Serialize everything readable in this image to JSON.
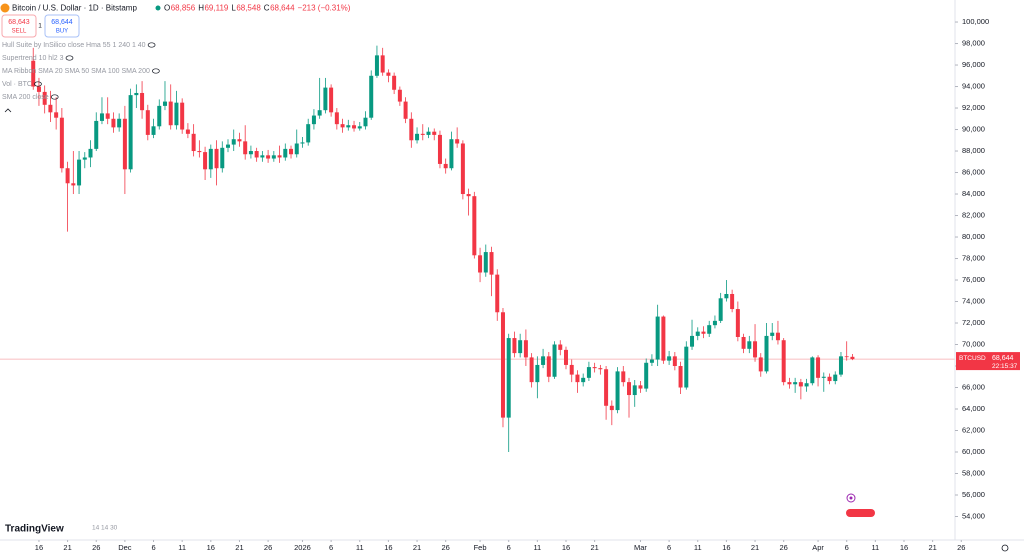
{
  "header": {
    "title": "Bitcoin / U.S. Dollar · 1D · Bitstamp",
    "ohlc": [
      {
        "prefix": "O",
        "text": "68,856"
      },
      {
        "prefix": "H",
        "text": "69,119"
      },
      {
        "prefix": "L",
        "text": "68,548"
      },
      {
        "prefix": "C",
        "text": "68,644"
      }
    ],
    "change": "−213 (−0.31%)"
  },
  "trade": {
    "sell": {
      "price": "68,643",
      "label": "SELL"
    },
    "spread": "1",
    "buy": {
      "price": "68,644",
      "label": "BUY"
    }
  },
  "indicators": [
    "Hull Suite by InSilico close Hma 55 1 240 1 40",
    "Supertrend 10 hl2 3",
    "MA Ribbon SMA 20 SMA 50 SMA 100 SMA 200",
    "Vol · BTC",
    "SMA 200 close"
  ],
  "footer": {
    "logo": "TradingView",
    "note": "14 14 30"
  },
  "chart_data": {
    "type": "candlestick",
    "up_color": "#089981",
    "down_color": "#f23645",
    "xlim": [
      -6.8,
      162
    ],
    "ylim": [
      52000,
      102050
    ],
    "grid": false,
    "xticks": [
      {
        "value": 0,
        "label": "16"
      },
      {
        "value": 5,
        "label": "21"
      },
      {
        "value": 10,
        "label": "26"
      },
      {
        "value": 15,
        "label": "Dec"
      },
      {
        "value": 20,
        "label": "6"
      },
      {
        "value": 25,
        "label": "11"
      },
      {
        "value": 30,
        "label": "16"
      },
      {
        "value": 35,
        "label": "21"
      },
      {
        "value": 40,
        "label": "26"
      },
      {
        "value": 46,
        "label": "2026"
      },
      {
        "value": 51,
        "label": "6"
      },
      {
        "value": 56,
        "label": "11"
      },
      {
        "value": 61,
        "label": "16"
      },
      {
        "value": 66,
        "label": "21"
      },
      {
        "value": 71,
        "label": "26"
      },
      {
        "value": 77,
        "label": "Feb"
      },
      {
        "value": 82,
        "label": "6"
      },
      {
        "value": 87,
        "label": "11"
      },
      {
        "value": 92,
        "label": "16"
      },
      {
        "value": 97,
        "label": "21"
      },
      {
        "value": 105,
        "label": "Mar"
      },
      {
        "value": 110,
        "label": "6"
      },
      {
        "value": 115,
        "label": "11"
      },
      {
        "value": 120,
        "label": "16"
      },
      {
        "value": 125,
        "label": "21"
      },
      {
        "value": 130,
        "label": "26"
      },
      {
        "value": 136,
        "label": "Apr"
      },
      {
        "value": 141,
        "label": "6"
      },
      {
        "value": 146,
        "label": "11"
      },
      {
        "value": 151,
        "label": "16"
      },
      {
        "value": 156,
        "label": "21"
      },
      {
        "value": 161,
        "label": "26"
      }
    ],
    "yticks": [
      {
        "value": 54000,
        "label": "54,000"
      },
      {
        "value": 56000,
        "label": "56,000"
      },
      {
        "value": 58000,
        "label": "58,000"
      },
      {
        "value": 60000,
        "label": "60,000"
      },
      {
        "value": 62000,
        "label": "62,000"
      },
      {
        "value": 64000,
        "label": "64,000"
      },
      {
        "value": 66000,
        "label": "66,000"
      },
      {
        "value": 68000,
        "label": "68,000"
      },
      {
        "value": 70000,
        "label": "70,000"
      },
      {
        "value": 72000,
        "label": "72,000"
      },
      {
        "value": 74000,
        "label": "74,000"
      },
      {
        "value": 76000,
        "label": "76,000"
      },
      {
        "value": 78000,
        "label": "78,000"
      },
      {
        "value": 80000,
        "label": "80,000"
      },
      {
        "value": 82000,
        "label": "82,000"
      },
      {
        "value": 84000,
        "label": "84,000"
      },
      {
        "value": 86000,
        "label": "86,000"
      },
      {
        "value": 88000,
        "label": "88,000"
      },
      {
        "value": 90000,
        "label": "90,000"
      },
      {
        "value": 92000,
        "label": "92,000"
      },
      {
        "value": 94000,
        "label": "94,000"
      },
      {
        "value": 96000,
        "label": "96,000"
      },
      {
        "value": 98000,
        "label": "98,000"
      },
      {
        "value": 100000,
        "label": "100,000"
      }
    ],
    "last_price": {
      "symbol": "BTCUSD",
      "value": 68644,
      "label": "68,644",
      "countdown": "22:15:37"
    },
    "x": [
      -1,
      0,
      1,
      2,
      3,
      4,
      5,
      6,
      7,
      8,
      9,
      10,
      11,
      12,
      13,
      14,
      15,
      16,
      17,
      18,
      19,
      20,
      21,
      22,
      23,
      24,
      25,
      26,
      27,
      28,
      29,
      30,
      31,
      32,
      33,
      34,
      35,
      36,
      37,
      38,
      39,
      40,
      41,
      42,
      43,
      44,
      45,
      46,
      47,
      48,
      49,
      50,
      51,
      52,
      53,
      54,
      55,
      56,
      57,
      58,
      59,
      60,
      61,
      62,
      63,
      64,
      65,
      66,
      67,
      68,
      69,
      70,
      71,
      72,
      73,
      74,
      75,
      76,
      77,
      78,
      79,
      80,
      81,
      82,
      83,
      84,
      85,
      86,
      87,
      88,
      89,
      90,
      91,
      92,
      93,
      94,
      95,
      96,
      97,
      98,
      99,
      100,
      101,
      102,
      103,
      104,
      105,
      106,
      107,
      108,
      109,
      110,
      111,
      112,
      113,
      114,
      115,
      116,
      117,
      118,
      119,
      120,
      121,
      122,
      123,
      124,
      125,
      126,
      127,
      128,
      129,
      130,
      131,
      132,
      133,
      134,
      135,
      136,
      137,
      138,
      139,
      140,
      141,
      142
    ],
    "open": [
      96400,
      94000,
      93500,
      92300,
      91600,
      91100,
      86400,
      85000,
      84800,
      87200,
      87400,
      88200,
      90800,
      91500,
      91000,
      90200,
      91000,
      86300,
      93200,
      93400,
      91800,
      89500,
      90300,
      92200,
      92600,
      90400,
      92500,
      90000,
      89600,
      88000,
      87900,
      86300,
      88200,
      86400,
      88300,
      88600,
      89100,
      88900,
      87700,
      88000,
      87400,
      87600,
      87300,
      87600,
      87400,
      88200,
      87700,
      88700,
      88800,
      90500,
      91300,
      91800,
      93900,
      91600,
      90500,
      90200,
      90400,
      90100,
      90300,
      91100,
      95000,
      96900,
      95300,
      95000,
      93700,
      92600,
      91000,
      89000,
      89600,
      89500,
      89800,
      89500,
      86800,
      86400,
      89100,
      88700,
      84000,
      83800,
      78300,
      76700,
      78600,
      76500,
      73000,
      63200,
      70600,
      69200,
      70400,
      68800,
      66500,
      68100,
      68900,
      67000,
      70000,
      69500,
      68100,
      67200,
      66500,
      66900,
      67900,
      67800,
      67700,
      64300,
      63900,
      67500,
      66500,
      65300,
      66200,
      65900,
      68300,
      68600,
      72600,
      68500,
      68900,
      68000,
      66000,
      69800,
      70800,
      71200,
      71000,
      71800,
      72200,
      74300,
      74700,
      73300,
      70700,
      69600,
      70300,
      68800,
      67500,
      70800,
      71100,
      70400,
      66500,
      66300,
      66500,
      66100,
      66400,
      68800,
      66900,
      67000,
      66600,
      67200,
      68900,
      68856
    ],
    "high": [
      97600,
      94800,
      94100,
      93600,
      93000,
      92000,
      87000,
      88000,
      88000,
      87900,
      89000,
      91600,
      93000,
      93000,
      91600,
      91500,
      92200,
      93800,
      94200,
      94500,
      92300,
      91000,
      92800,
      94500,
      94200,
      93600,
      92900,
      90600,
      90500,
      89000,
      88400,
      88600,
      89000,
      88900,
      89100,
      90000,
      89700,
      90400,
      88500,
      88300,
      88000,
      88100,
      88000,
      88500,
      88700,
      88500,
      90000,
      89300,
      91000,
      91900,
      94800,
      94800,
      94200,
      92000,
      91000,
      90900,
      90800,
      90700,
      91700,
      95500,
      97800,
      97600,
      95600,
      95300,
      94000,
      93000,
      91600,
      90200,
      90500,
      90200,
      90100,
      89900,
      87300,
      89800,
      90200,
      89000,
      84500,
      84200,
      79000,
      79300,
      79100,
      77000,
      73400,
      71000,
      71200,
      71000,
      71400,
      69200,
      68900,
      69600,
      69300,
      70300,
      70400,
      69800,
      68600,
      67600,
      67300,
      68400,
      68300,
      68100,
      68000,
      64800,
      67900,
      68000,
      66900,
      66700,
      66600,
      68700,
      69100,
      73700,
      72700,
      69400,
      69300,
      68400,
      70300,
      72300,
      71600,
      71700,
      72200,
      72700,
      74800,
      76000,
      75100,
      74000,
      71000,
      70800,
      71900,
      69200,
      72000,
      72000,
      72200,
      70600,
      66900,
      66900,
      66800,
      66800,
      68900,
      69000,
      67400,
      67300,
      67500,
      69300,
      70300,
      69119
    ],
    "low": [
      93700,
      92200,
      91500,
      90700,
      90000,
      86000,
      80500,
      84000,
      84000,
      86400,
      86500,
      88000,
      90500,
      90500,
      89700,
      89800,
      84000,
      86000,
      92000,
      91000,
      89000,
      89200,
      90000,
      91800,
      90000,
      90000,
      89600,
      89200,
      87500,
      87400,
      85300,
      85500,
      84800,
      86000,
      87900,
      88000,
      88400,
      87200,
      87300,
      87000,
      87000,
      86900,
      87000,
      86900,
      87100,
      87300,
      87400,
      88300,
      88500,
      90000,
      91000,
      91500,
      91200,
      90000,
      89700,
      89900,
      89800,
      89900,
      90000,
      90900,
      94800,
      95000,
      94400,
      93300,
      92200,
      90600,
      88300,
      88700,
      89000,
      89200,
      89000,
      86400,
      85900,
      86200,
      88300,
      83500,
      82000,
      78000,
      75800,
      76300,
      74500,
      72200,
      62300,
      60000,
      68800,
      68800,
      68000,
      66000,
      65000,
      67800,
      66500,
      66800,
      69000,
      67700,
      66500,
      65500,
      66100,
      66600,
      67400,
      67200,
      63000,
      62500,
      63600,
      66100,
      63200,
      64200,
      65500,
      65600,
      68000,
      68000,
      68200,
      68100,
      67600,
      65400,
      65800,
      69500,
      70400,
      70600,
      70700,
      71500,
      72000,
      74000,
      73000,
      70300,
      69200,
      69200,
      68400,
      67000,
      67300,
      70400,
      70000,
      66200,
      65900,
      65500,
      64900,
      65600,
      66200,
      66100,
      65600,
      66300,
      66300,
      67000,
      68500,
      68548
    ],
    "close": [
      94000,
      93500,
      92300,
      91600,
      91100,
      86400,
      85000,
      84800,
      87200,
      87400,
      88200,
      90800,
      91500,
      91000,
      90200,
      91000,
      86300,
      93200,
      93400,
      91800,
      89500,
      90300,
      92200,
      92600,
      90400,
      92500,
      90000,
      89600,
      88000,
      87900,
      86300,
      88200,
      86400,
      88300,
      88600,
      89100,
      88900,
      87700,
      88000,
      87400,
      87600,
      87300,
      87600,
      87400,
      88200,
      87700,
      88700,
      88800,
      90500,
      91300,
      91800,
      93900,
      91600,
      90500,
      90200,
      90400,
      90100,
      90300,
      91100,
      95000,
      96900,
      95300,
      95000,
      93700,
      92600,
      91000,
      89000,
      89600,
      89500,
      89800,
      89500,
      86800,
      86400,
      89100,
      88700,
      84000,
      83800,
      78300,
      76700,
      78600,
      76500,
      73000,
      63200,
      70600,
      69200,
      70400,
      68800,
      66500,
      68100,
      68900,
      67000,
      70000,
      69500,
      68100,
      67200,
      66500,
      66900,
      67900,
      67800,
      67700,
      64300,
      63900,
      67500,
      66500,
      65300,
      66200,
      65900,
      68300,
      68600,
      72600,
      68500,
      68900,
      68000,
      66000,
      69800,
      70800,
      71200,
      71000,
      71800,
      72200,
      74300,
      74700,
      73300,
      70700,
      69600,
      70300,
      68800,
      67500,
      70800,
      71100,
      70400,
      66500,
      66300,
      66500,
      66100,
      66400,
      68800,
      66900,
      67000,
      66600,
      67200,
      68900,
      68856,
      68644
    ]
  }
}
